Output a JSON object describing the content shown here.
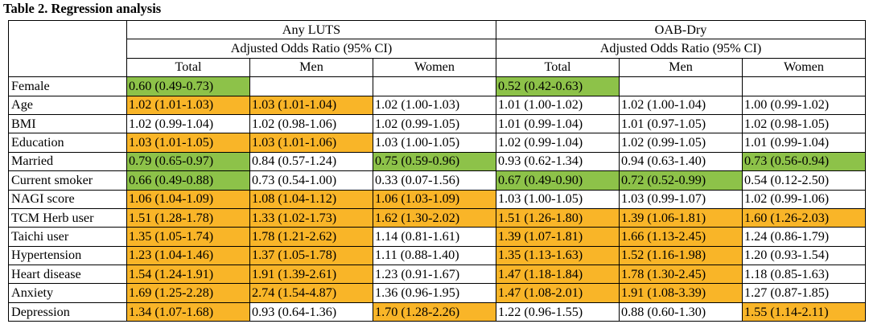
{
  "title": "Table 2. Regression analysis",
  "colors": {
    "significant_lower": "#8dc249",
    "significant_higher": "#f9b528"
  },
  "groups": [
    {
      "label": "Any LUTS",
      "subheader": "Adjusted Odds Ratio (95% CI)"
    },
    {
      "label": "OAB-Dry",
      "subheader": "Adjusted Odds Ratio (95% CI)"
    }
  ],
  "subgroups": [
    "Total",
    "Men",
    "Women",
    "Total",
    "Men",
    "Women"
  ],
  "rows": [
    {
      "label": "Female",
      "cells": [
        {
          "v": "0.60 (0.49-0.73)",
          "h": "g"
        },
        {
          "v": "",
          "h": ""
        },
        {
          "v": "",
          "h": ""
        },
        {
          "v": "0.52 (0.42-0.63)",
          "h": "g"
        },
        {
          "v": "",
          "h": ""
        },
        {
          "v": "",
          "h": ""
        }
      ]
    },
    {
      "label": "Age",
      "cells": [
        {
          "v": "1.02 (1.01-1.03)",
          "h": "o"
        },
        {
          "v": "1.03 (1.01-1.04)",
          "h": "o"
        },
        {
          "v": "1.02 (1.00-1.03)",
          "h": ""
        },
        {
          "v": "1.01 (1.00-1.02)",
          "h": ""
        },
        {
          "v": "1.02 (1.00-1.04)",
          "h": ""
        },
        {
          "v": "1.00 (0.99-1.02)",
          "h": ""
        }
      ]
    },
    {
      "label": "BMI",
      "cells": [
        {
          "v": "1.02 (0.99-1.04)",
          "h": ""
        },
        {
          "v": "1.02 (0.98-1.06)",
          "h": ""
        },
        {
          "v": "1.02 (0.99-1.05)",
          "h": ""
        },
        {
          "v": "1.01 (0.99-1.04)",
          "h": ""
        },
        {
          "v": "1.01 (0.97-1.05)",
          "h": ""
        },
        {
          "v": "1.02 (0.98-1.05)",
          "h": ""
        }
      ]
    },
    {
      "label": "Education",
      "cells": [
        {
          "v": "1.03 (1.01-1.05)",
          "h": "o"
        },
        {
          "v": "1.03 (1.01-1.06)",
          "h": "o"
        },
        {
          "v": "1.03 (1.00-1.05)",
          "h": ""
        },
        {
          "v": "1.02 (0.99-1.04)",
          "h": ""
        },
        {
          "v": "1.02 (0.99-1.05)",
          "h": ""
        },
        {
          "v": "1.01 (0.99-1.04)",
          "h": ""
        }
      ]
    },
    {
      "label": "Married",
      "cells": [
        {
          "v": "0.79 (0.65-0.97)",
          "h": "g"
        },
        {
          "v": "0.84 (0.57-1.24)",
          "h": ""
        },
        {
          "v": "0.75 (0.59-0.96)",
          "h": "g"
        },
        {
          "v": "0.93 (0.62-1.34)",
          "h": ""
        },
        {
          "v": "0.94 (0.63-1.40)",
          "h": ""
        },
        {
          "v": "0.73 (0.56-0.94)",
          "h": "g"
        }
      ]
    },
    {
      "label": "Current smoker",
      "cells": [
        {
          "v": "0.66 (0.49-0.88)",
          "h": "g"
        },
        {
          "v": "0.73 (0.54-1.00)",
          "h": ""
        },
        {
          "v": "0.33 (0.07-1.56)",
          "h": ""
        },
        {
          "v": "0.67 (0.49-0.90)",
          "h": "g"
        },
        {
          "v": "0.72 (0.52-0.99)",
          "h": "g"
        },
        {
          "v": "0.54 (0.12-2.50)",
          "h": ""
        }
      ]
    },
    {
      "label": "NAGI score",
      "cells": [
        {
          "v": "1.06 (1.04-1.09)",
          "h": "o"
        },
        {
          "v": "1.08 (1.04-1.12)",
          "h": "o"
        },
        {
          "v": "1.06 (1.03-1.09)",
          "h": "o"
        },
        {
          "v": "1.03 (1.00-1.05)",
          "h": ""
        },
        {
          "v": "1.03 (0.99-1.07)",
          "h": ""
        },
        {
          "v": "1.02 (0.99-1.06)",
          "h": ""
        }
      ]
    },
    {
      "label": "TCM Herb user",
      "cells": [
        {
          "v": "1.51 (1.28-1.78)",
          "h": "o"
        },
        {
          "v": "1.33 (1.02-1.73)",
          "h": "o"
        },
        {
          "v": "1.62 (1.30-2.02)",
          "h": "o"
        },
        {
          "v": "1.51 (1.26-1.80)",
          "h": "o"
        },
        {
          "v": "1.39 (1.06-1.81)",
          "h": "o"
        },
        {
          "v": "1.60 (1.26-2.03)",
          "h": "o"
        }
      ]
    },
    {
      "label": "Taichi user",
      "cells": [
        {
          "v": "1.35 (1.05-1.74)",
          "h": "o"
        },
        {
          "v": "1.78 (1.21-2.62)",
          "h": "o"
        },
        {
          "v": "1.14 (0.81-1.61)",
          "h": ""
        },
        {
          "v": "1.39 (1.07-1.81)",
          "h": "o"
        },
        {
          "v": "1.66 (1.13-2.45)",
          "h": "o"
        },
        {
          "v": "1.24 (0.86-1.79)",
          "h": ""
        }
      ]
    },
    {
      "label": "Hypertension",
      "cells": [
        {
          "v": "1.23 (1.04-1.46)",
          "h": "o"
        },
        {
          "v": "1.37 (1.05-1.78)",
          "h": "o"
        },
        {
          "v": "1.11 (0.88-1.40)",
          "h": ""
        },
        {
          "v": "1.35 (1.13-1.63)",
          "h": "o"
        },
        {
          "v": "1.52 (1.16-1.98)",
          "h": "o"
        },
        {
          "v": "1.20 (0.93-1.54)",
          "h": ""
        }
      ]
    },
    {
      "label": "Heart disease",
      "cells": [
        {
          "v": "1.54 (1.24-1.91)",
          "h": "o"
        },
        {
          "v": "1.91 (1.39-2.61)",
          "h": "o"
        },
        {
          "v": "1.23 (0.91-1.67)",
          "h": ""
        },
        {
          "v": "1.47 (1.18-1.84)",
          "h": "o"
        },
        {
          "v": "1.78 (1.30-2.45)",
          "h": "o"
        },
        {
          "v": "1.18 (0.85-1.63)",
          "h": ""
        }
      ]
    },
    {
      "label": "Anxiety",
      "cells": [
        {
          "v": "1.69 (1.25-2.28)",
          "h": "o"
        },
        {
          "v": "2.74 (1.54-4.87)",
          "h": "o"
        },
        {
          "v": "1.36 (0.96-1.95)",
          "h": ""
        },
        {
          "v": "1.47 (1.08-2.01)",
          "h": "o"
        },
        {
          "v": "1.91 (1.08-3.39)",
          "h": "o"
        },
        {
          "v": "1.27 (0.87-1.85)",
          "h": ""
        }
      ]
    },
    {
      "label": "Depression",
      "cells": [
        {
          "v": "1.34 (1.07-1.68)",
          "h": "o"
        },
        {
          "v": "0.93 (0.64-1.36)",
          "h": ""
        },
        {
          "v": "1.70 (1.28-2.26)",
          "h": "o"
        },
        {
          "v": "1.22 (0.96-1.55)",
          "h": ""
        },
        {
          "v": "0.88 (0.60-1.30)",
          "h": ""
        },
        {
          "v": "1.55 (1.14-2.11)",
          "h": "o"
        }
      ]
    }
  ]
}
